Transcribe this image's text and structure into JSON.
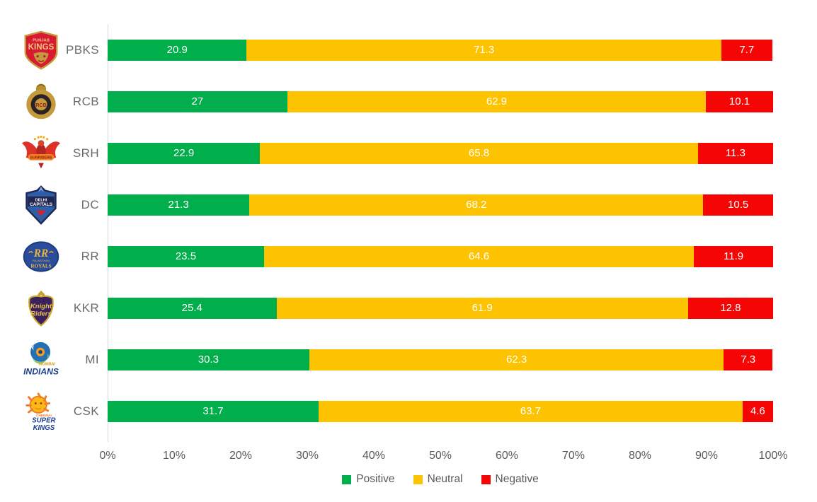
{
  "chart_data": {
    "type": "bar",
    "orientation": "horizontal",
    "stacked": true,
    "title": "",
    "xlabel": "",
    "ylabel": "",
    "categories": [
      "PBKS",
      "RCB",
      "SRH",
      "DC",
      "RR",
      "KKR",
      "MI",
      "CSK"
    ],
    "category_logos": [
      "pbks-logo",
      "rcb-logo",
      "srh-logo",
      "dc-logo",
      "rr-logo",
      "kkr-logo",
      "mi-logo",
      "csk-logo"
    ],
    "series": [
      {
        "name": "Positive",
        "color": "#00AE4B",
        "values": [
          20.9,
          27,
          22.9,
          21.3,
          23.5,
          25.4,
          30.3,
          31.7
        ]
      },
      {
        "name": "Neutral",
        "color": "#FDC300",
        "values": [
          71.3,
          62.9,
          65.8,
          68.2,
          64.6,
          61.9,
          62.3,
          63.7
        ]
      },
      {
        "name": "Negative",
        "color": "#F60505",
        "values": [
          7.7,
          10.1,
          11.3,
          10.5,
          11.9,
          12.8,
          7.3,
          4.6
        ]
      }
    ],
    "xlim": [
      0,
      100
    ],
    "x_ticks": [
      "0%",
      "10%",
      "20%",
      "30%",
      "40%",
      "50%",
      "60%",
      "70%",
      "80%",
      "90%",
      "100%"
    ],
    "grid": false,
    "legend": {
      "position": "bottom-center",
      "entries": [
        "Positive",
        "Neutral",
        "Negative"
      ]
    }
  },
  "styles": {
    "axis_line_color": "#D9D9D9",
    "team_label_color": "#6A6A6A",
    "tick_color": "#595959",
    "legend_text_color": "#595959",
    "bar_value_color": "#FFFFFF",
    "background": "#FFFFFF"
  }
}
